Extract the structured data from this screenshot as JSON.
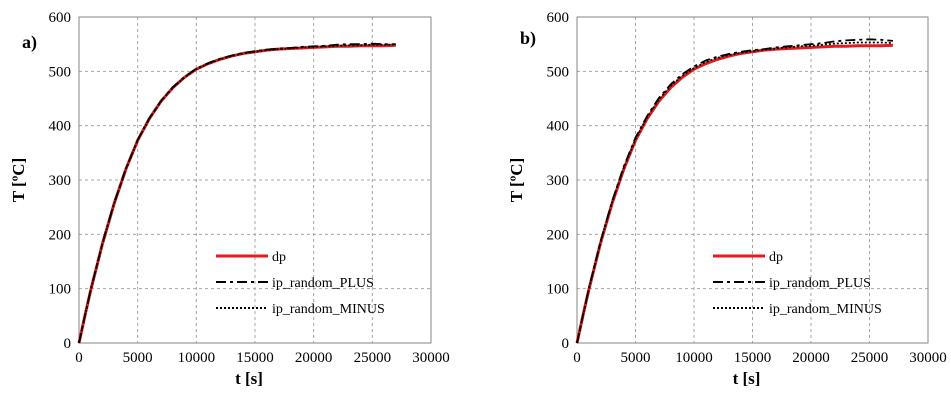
{
  "chart_data": [
    {
      "type": "line",
      "panel_label": "a)",
      "xlabel": "t [s]",
      "ylabel": "T [ºC]",
      "xlim": [
        0,
        30000
      ],
      "ylim": [
        0,
        600
      ],
      "xticks": [
        0,
        5000,
        10000,
        15000,
        20000,
        25000,
        30000
      ],
      "yticks": [
        0,
        100,
        200,
        300,
        400,
        500,
        600
      ],
      "grid": true,
      "legend_position": "bottom-right",
      "series": [
        {
          "name": "dp",
          "color": "#e41a1c",
          "style": "solid",
          "x": [
            0,
            500,
            1000,
            2000,
            3000,
            4000,
            5000,
            6000,
            7000,
            8000,
            9000,
            10000,
            11000,
            12000,
            13000,
            14000,
            15000,
            16000,
            17000,
            18000,
            19000,
            20000,
            21000,
            22000,
            23000,
            24000,
            25000,
            26000,
            27000
          ],
          "y": [
            0,
            50,
            97,
            183,
            257,
            320,
            373,
            413,
            445,
            470,
            489,
            504,
            514,
            522,
            528,
            533,
            536,
            539,
            541,
            542,
            543,
            544,
            545,
            546,
            546,
            547,
            547,
            547,
            548
          ]
        },
        {
          "name": "ip_random_PLUS",
          "color": "#000000",
          "style": "dashdot",
          "x": [
            0,
            500,
            1000,
            2000,
            3000,
            4000,
            5000,
            6000,
            7000,
            8000,
            9000,
            10000,
            11000,
            12000,
            13000,
            14000,
            15000,
            16000,
            17000,
            18000,
            19000,
            20000,
            21000,
            22000,
            23000,
            24000,
            25000,
            26000,
            27000
          ],
          "y": [
            0,
            50,
            98,
            184,
            258,
            321,
            374,
            414,
            446,
            471,
            490,
            505,
            515,
            523,
            529,
            534,
            537,
            540,
            542,
            543,
            545,
            546,
            547,
            549,
            550,
            550,
            551,
            550,
            550
          ]
        },
        {
          "name": "ip_random_MINUS",
          "color": "#000000",
          "style": "dotted",
          "x": [
            0,
            500,
            1000,
            2000,
            3000,
            4000,
            5000,
            6000,
            7000,
            8000,
            9000,
            10000,
            11000,
            12000,
            13000,
            14000,
            15000,
            16000,
            17000,
            18000,
            19000,
            20000,
            21000,
            22000,
            23000,
            24000,
            25000,
            26000,
            27000
          ],
          "y": [
            0,
            50,
            97,
            183,
            257,
            320,
            373,
            413,
            445,
            470,
            489,
            504,
            514,
            522,
            528,
            533,
            536,
            539,
            541,
            542,
            544,
            545,
            546,
            547,
            548,
            548,
            549,
            549,
            549
          ]
        }
      ]
    },
    {
      "type": "line",
      "panel_label": "b)",
      "xlabel": "t [s]",
      "ylabel": "T [ºC]",
      "xlim": [
        0,
        30000
      ],
      "ylim": [
        0,
        600
      ],
      "xticks": [
        0,
        5000,
        10000,
        15000,
        20000,
        25000,
        30000
      ],
      "yticks": [
        0,
        100,
        200,
        300,
        400,
        500,
        600
      ],
      "grid": true,
      "legend_position": "bottom-right",
      "series": [
        {
          "name": "dp",
          "color": "#e41a1c",
          "style": "solid",
          "x": [
            0,
            500,
            1000,
            2000,
            3000,
            4000,
            5000,
            6000,
            7000,
            8000,
            9000,
            10000,
            11000,
            12000,
            13000,
            14000,
            15000,
            16000,
            17000,
            18000,
            19000,
            20000,
            21000,
            22000,
            23000,
            24000,
            25000,
            26000,
            27000
          ],
          "y": [
            0,
            50,
            97,
            183,
            257,
            320,
            373,
            413,
            445,
            470,
            489,
            504,
            514,
            522,
            528,
            533,
            536,
            539,
            541,
            542,
            543,
            544,
            545,
            546,
            546,
            547,
            547,
            547,
            548
          ]
        },
        {
          "name": "ip_random_PLUS",
          "color": "#000000",
          "style": "dashdot",
          "x": [
            0,
            500,
            1000,
            2000,
            3000,
            4000,
            5000,
            6000,
            7000,
            8000,
            9000,
            10000,
            11000,
            12000,
            13000,
            14000,
            15000,
            16000,
            17000,
            18000,
            19000,
            20000,
            21000,
            22000,
            23000,
            24000,
            25000,
            26000,
            27000
          ],
          "y": [
            0,
            51,
            99,
            186,
            261,
            325,
            378,
            418,
            451,
            476,
            495,
            509,
            520,
            527,
            532,
            536,
            539,
            541,
            544,
            546,
            548,
            550,
            552,
            555,
            557,
            558,
            559,
            558,
            556
          ]
        },
        {
          "name": "ip_random_MINUS",
          "color": "#000000",
          "style": "dotted",
          "x": [
            0,
            500,
            1000,
            2000,
            3000,
            4000,
            5000,
            6000,
            7000,
            8000,
            9000,
            10000,
            11000,
            12000,
            13000,
            14000,
            15000,
            16000,
            17000,
            18000,
            19000,
            20000,
            21000,
            22000,
            23000,
            24000,
            25000,
            26000,
            27000
          ],
          "y": [
            0,
            50,
            98,
            184,
            259,
            322,
            375,
            416,
            448,
            473,
            492,
            506,
            517,
            525,
            530,
            534,
            537,
            540,
            542,
            544,
            546,
            547,
            549,
            551,
            552,
            553,
            553,
            553,
            552
          ]
        }
      ]
    }
  ]
}
